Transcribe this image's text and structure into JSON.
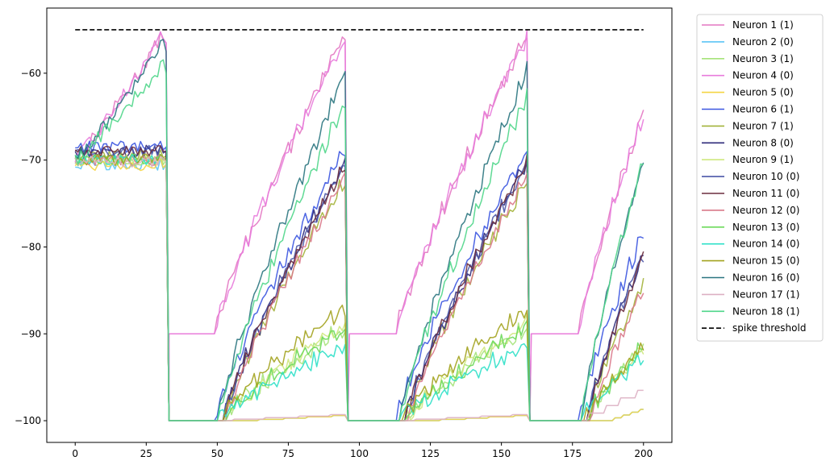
{
  "chart_data": {
    "type": "line",
    "title": "",
    "xlabel": "",
    "ylabel": "",
    "xlim": [
      -10,
      210
    ],
    "ylim": [
      -102.5,
      -52.5
    ],
    "xticks": [
      0,
      25,
      50,
      75,
      100,
      125,
      150,
      175,
      200
    ],
    "yticks": [
      -100,
      -90,
      -80,
      -70,
      -60
    ],
    "grid": false,
    "legend_position": "outside-right",
    "threshold": {
      "name": "spike threshold",
      "value": -55,
      "x": [
        0,
        200
      ],
      "color": "#000000",
      "style": "dashed"
    },
    "series": [
      {
        "name": "Neuron 1 (1)",
        "color": "#e377c2",
        "profile": "pink",
        "final": -65.0
      },
      {
        "name": "Neuron 2 (0)",
        "color": "#5bc4f5",
        "profile": "silent",
        "final": -98.5
      },
      {
        "name": "Neuron 3 (1)",
        "color": "#a6e37a",
        "profile": "lowA",
        "final": -91.5
      },
      {
        "name": "Neuron 4 (0)",
        "color": "#e87bdc",
        "profile": "pink",
        "final": -65.0
      },
      {
        "name": "Neuron 5 (0)",
        "color": "#f5d442",
        "profile": "silent",
        "final": -98.5
      },
      {
        "name": "Neuron 6 (1)",
        "color": "#3b55e0",
        "profile": "blue",
        "final": -78.5
      },
      {
        "name": "Neuron 7 (1)",
        "color": "#a3b33a",
        "profile": "midA",
        "final": -84.0
      },
      {
        "name": "Neuron 8 (0)",
        "color": "#2e2a7a",
        "profile": "midB",
        "final": -81.0
      },
      {
        "name": "Neuron 9 (1)",
        "color": "#cfe87f",
        "profile": "lowB",
        "final": -92.0
      },
      {
        "name": "Neuron 10 (0)",
        "color": "#4b57a8",
        "profile": "midB",
        "final": -80.5
      },
      {
        "name": "Neuron 11 (0)",
        "color": "#6b2d3e",
        "profile": "midB",
        "final": -83.5
      },
      {
        "name": "Neuron 12 (0)",
        "color": "#d9788a",
        "profile": "midC",
        "final": -85.0
      },
      {
        "name": "Neuron 13 (0)",
        "color": "#6cd95a",
        "profile": "lowA",
        "final": -91.5
      },
      {
        "name": "Neuron 14 (0)",
        "color": "#2ee0c8",
        "profile": "cyan",
        "final": -93.0
      },
      {
        "name": "Neuron 15 (0)",
        "color": "#a3a31f",
        "profile": "olive",
        "final": -91.5
      },
      {
        "name": "Neuron 16 (0)",
        "color": "#2a7580",
        "profile": "teal",
        "final": -70.0
      },
      {
        "name": "Neuron 17 (1)",
        "color": "#ddb0c3",
        "profile": "faint",
        "final": -96.5
      },
      {
        "name": "Neuron 18 (1)",
        "color": "#4fd68a",
        "profile": "mint",
        "final": -70.0
      }
    ]
  }
}
